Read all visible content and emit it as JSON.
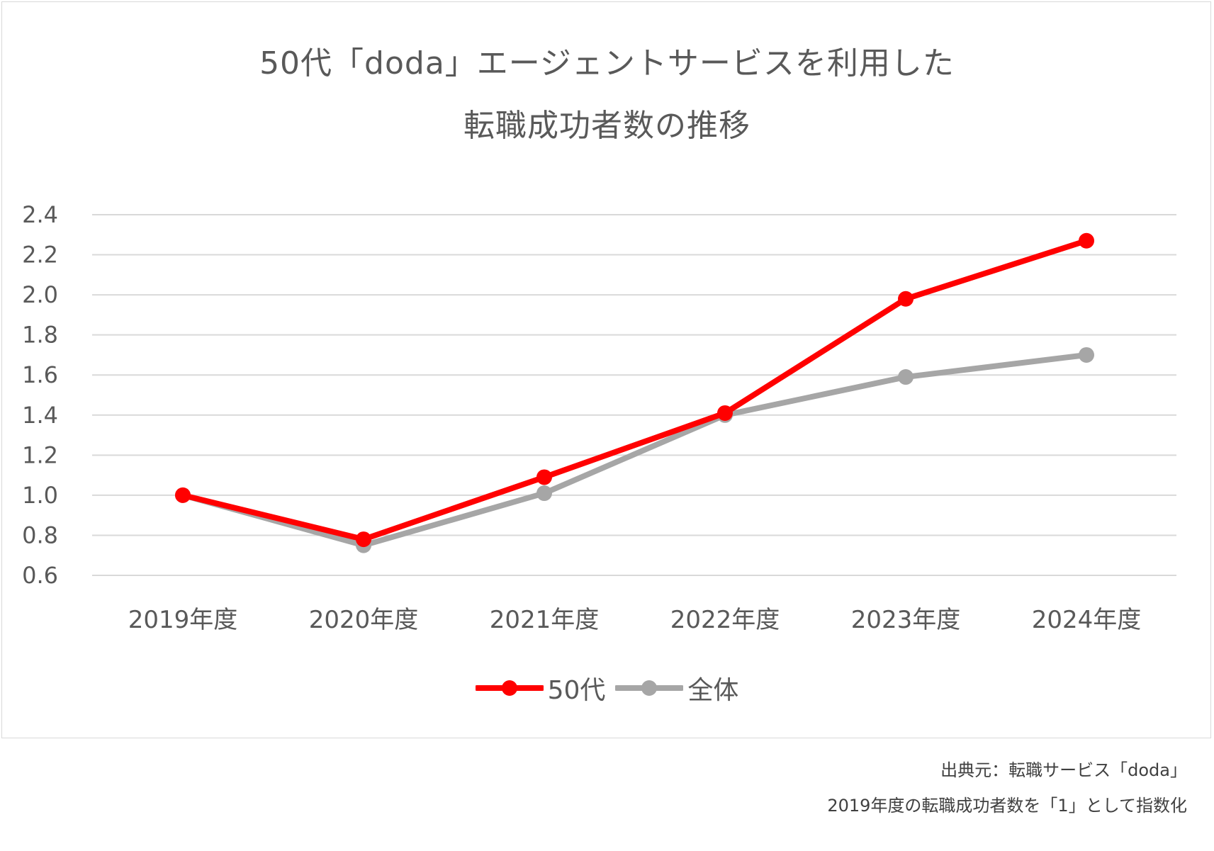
{
  "chart_data": {
    "type": "line",
    "title_lines": [
      "50代「doda」エージェントサービスを利用した",
      "転職成功者数の推移"
    ],
    "categories": [
      "2019年度",
      "2020年度",
      "2021年度",
      "2022年度",
      "2023年度",
      "2024年度"
    ],
    "series": [
      {
        "name": "50代",
        "color": "#ff0000",
        "values": [
          1.0,
          0.78,
          1.09,
          1.41,
          1.98,
          2.27
        ]
      },
      {
        "name": "全体",
        "color": "#a6a6a6",
        "values": [
          1.0,
          0.75,
          1.01,
          1.4,
          1.59,
          1.7
        ]
      }
    ],
    "ylim": [
      0.6,
      2.4
    ],
    "yticks": [
      "0.6",
      "0.8",
      "1.0",
      "1.2",
      "1.4",
      "1.6",
      "1.8",
      "2.0",
      "2.2",
      "2.4"
    ],
    "grid": true,
    "legend_position": "bottom"
  },
  "notes": {
    "source": "出典元：転職サービス「doda」",
    "index_note": "2019年度の転職成功者数を「1」として指数化"
  }
}
